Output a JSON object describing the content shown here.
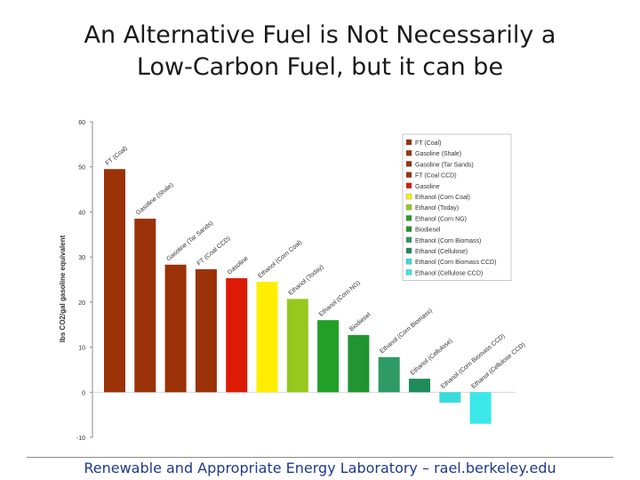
{
  "slide": {
    "title_line1": "An Alternative Fuel is Not Necessarily a",
    "title_line2": "Low-Carbon Fuel, but it can be",
    "footer": "Renewable and Appropriate Energy Laboratory – rael.berkeley.edu"
  },
  "chart_data": {
    "type": "bar",
    "title": "",
    "ylabel": "lbs CO2/gal gasoline equivalent",
    "xlabel": "",
    "ylim": [
      -10,
      60
    ],
    "yticks": [
      -10,
      0,
      10,
      20,
      30,
      40,
      50,
      60
    ],
    "grid": false,
    "legend_position": "top-right",
    "categories": [
      "FT (Coal)",
      "Gasoline (Shale)",
      "Gasoline (Tar Sands)",
      "FT (Coal CCD)",
      "Gasoline",
      "Ethanol (Corn Coal)",
      "Ethanol (Today)",
      "Ethanol (Corn NG)",
      "Biodiesel",
      "Ethanol (Corn Biomass)",
      "Ethanol (Cellulose)",
      "Ethanol (Corn Biomass CCD)",
      "Ethanol (Cellulose CCD)"
    ],
    "values": [
      49.5,
      38.5,
      28.3,
      27.3,
      25.3,
      24.5,
      20.7,
      16.0,
      12.7,
      7.8,
      3.0,
      -2.3,
      -7.0
    ],
    "colors": [
      "#9b3208",
      "#9b3208",
      "#9b3208",
      "#9b3208",
      "#dd1a06",
      "#ffee00",
      "#96c81e",
      "#22a028",
      "#229432",
      "#2e9a64",
      "#1e8c5a",
      "#38dcdc",
      "#3ae8ea"
    ]
  }
}
